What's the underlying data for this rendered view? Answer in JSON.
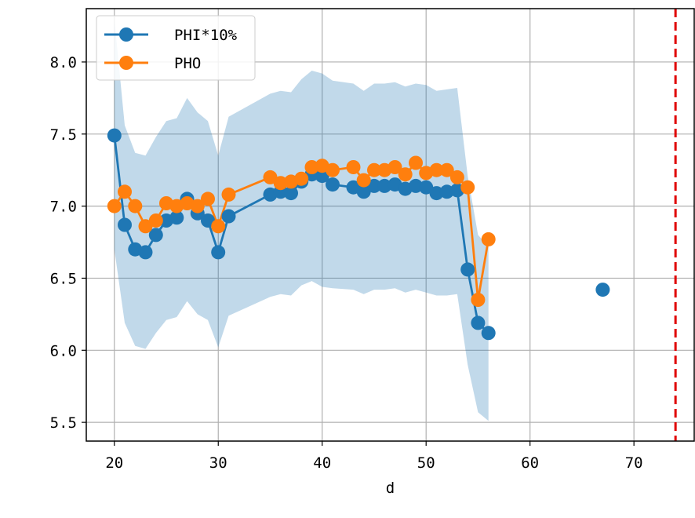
{
  "chart_data": {
    "type": "line",
    "title": "",
    "xlabel": "d",
    "ylabel": "",
    "xlim": [
      17.3,
      75.8
    ],
    "ylim": [
      5.37,
      8.37
    ],
    "xticks": [
      20,
      30,
      40,
      50,
      60,
      70
    ],
    "xtick_labels": [
      "20",
      "30",
      "40",
      "50",
      "60",
      "70"
    ],
    "yticks": [
      5.5,
      6.0,
      6.5,
      7.0,
      7.5,
      8.0
    ],
    "ytick_labels": [
      "5.5",
      "6.0",
      "6.5",
      "7.0",
      "7.5",
      "8.0"
    ],
    "grid": true,
    "legend_position": "top-left",
    "series": [
      {
        "name": "PHI*10%",
        "color": "#1f77b4",
        "x": [
          20,
          21,
          22,
          23,
          24,
          25,
          26,
          27,
          28,
          29,
          30,
          31,
          35,
          36,
          37,
          38,
          39,
          40,
          41,
          43,
          44,
          45,
          46,
          47,
          48,
          49,
          50,
          51,
          52,
          53,
          54,
          55,
          56,
          67
        ],
        "y": [
          7.49,
          6.87,
          6.7,
          6.68,
          6.8,
          6.9,
          6.92,
          7.05,
          6.95,
          6.9,
          6.68,
          6.93,
          7.08,
          7.1,
          7.09,
          7.17,
          7.22,
          7.21,
          7.15,
          7.13,
          7.1,
          7.14,
          7.14,
          7.15,
          7.12,
          7.14,
          7.13,
          7.09,
          7.1,
          7.11,
          6.56,
          6.19,
          6.12,
          6.42
        ],
        "segments": [
          [
            0,
            32
          ],
          [
            33,
            33
          ]
        ]
      },
      {
        "name": "PHO",
        "color": "#ff7f0e",
        "x": [
          20,
          21,
          22,
          23,
          24,
          25,
          26,
          27,
          28,
          29,
          30,
          31,
          35,
          36,
          37,
          38,
          39,
          40,
          41,
          43,
          44,
          45,
          46,
          47,
          48,
          49,
          50,
          51,
          52,
          53,
          54,
          55,
          56
        ],
        "y": [
          7.0,
          7.1,
          7.0,
          6.86,
          6.9,
          7.02,
          7.0,
          7.02,
          7.0,
          7.05,
          6.86,
          7.08,
          7.2,
          7.16,
          7.17,
          7.19,
          7.27,
          7.28,
          7.25,
          7.27,
          7.18,
          7.25,
          7.25,
          7.27,
          7.22,
          7.3,
          7.23,
          7.25,
          7.25,
          7.2,
          7.13,
          6.35,
          6.77
        ]
      }
    ],
    "confidence_band": {
      "color": "#1f77b4",
      "opacity": 0.28,
      "x": [
        20,
        21,
        22,
        23,
        24,
        25,
        26,
        27,
        28,
        29,
        30,
        31,
        35,
        36,
        37,
        38,
        39,
        40,
        41,
        43,
        44,
        45,
        46,
        47,
        48,
        49,
        50,
        51,
        52,
        53,
        54,
        55,
        56
      ],
      "lower": [
        6.7,
        6.19,
        6.03,
        6.01,
        6.12,
        6.21,
        6.23,
        6.34,
        6.25,
        6.21,
        6.02,
        6.24,
        6.37,
        6.39,
        6.38,
        6.45,
        6.48,
        6.44,
        6.43,
        6.42,
        6.39,
        6.42,
        6.42,
        6.43,
        6.4,
        6.42,
        6.4,
        6.38,
        6.38,
        6.39,
        5.9,
        5.57,
        5.51
      ],
      "upper": [
        8.3,
        7.56,
        7.37,
        7.35,
        7.48,
        7.59,
        7.61,
        7.75,
        7.65,
        7.59,
        7.35,
        7.62,
        7.78,
        7.8,
        7.79,
        7.88,
        7.94,
        7.92,
        7.87,
        7.85,
        7.8,
        7.85,
        7.85,
        7.86,
        7.83,
        7.85,
        7.84,
        7.8,
        7.81,
        7.82,
        7.21,
        6.8,
        6.72
      ]
    },
    "reference_line": {
      "x": 74,
      "color": "#e00000",
      "style": "dashed"
    }
  }
}
